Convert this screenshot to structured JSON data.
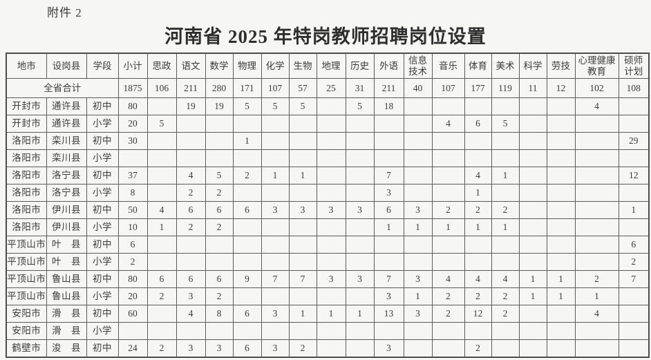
{
  "page": {
    "attachment_label": "附件 2",
    "title": "河南省 2025 年特岗教师招聘岗位设置"
  },
  "table": {
    "columns": [
      "地市",
      "设岗县",
      "学段",
      "小计",
      "思政",
      "语文",
      "数学",
      "物理",
      "化学",
      "生物",
      "地理",
      "历史",
      "外语",
      "信息\n技术",
      "音乐",
      "体育",
      "美术",
      "科学",
      "劳技",
      "心理健康\n教育",
      "硕师\n计划"
    ],
    "total_row": {
      "label": "全省合计",
      "values": [
        "1875",
        "106",
        "211",
        "280",
        "171",
        "107",
        "57",
        "25",
        "31",
        "211",
        "40",
        "107",
        "177",
        "119",
        "11",
        "12",
        "102",
        "108"
      ]
    },
    "rows": [
      {
        "city": "开封市",
        "county": "通许县",
        "stage": "初中",
        "values": [
          "80",
          "",
          "19",
          "19",
          "5",
          "5",
          "5",
          "",
          "5",
          "18",
          "",
          "",
          "",
          "",
          "",
          "",
          "4",
          ""
        ]
      },
      {
        "city": "开封市",
        "county": "通许县",
        "stage": "小学",
        "values": [
          "20",
          "5",
          "",
          "",
          "",
          "",
          "",
          "",
          "",
          "",
          "",
          "4",
          "6",
          "5",
          "",
          "",
          "",
          ""
        ]
      },
      {
        "city": "洛阳市",
        "county": "栾川县",
        "stage": "初中",
        "values": [
          "30",
          "",
          "",
          "",
          "1",
          "",
          "",
          "",
          "",
          "",
          "",
          "",
          "",
          "",
          "",
          "",
          "",
          "29"
        ]
      },
      {
        "city": "洛阳市",
        "county": "栾川县",
        "stage": "小学",
        "values": [
          "",
          "",
          "",
          "",
          "",
          "",
          "",
          "",
          "",
          "",
          "",
          "",
          "",
          "",
          "",
          "",
          "",
          ""
        ]
      },
      {
        "city": "洛阳市",
        "county": "洛宁县",
        "stage": "初中",
        "values": [
          "37",
          "",
          "4",
          "5",
          "2",
          "1",
          "1",
          "",
          "",
          "7",
          "",
          "",
          "4",
          "1",
          "",
          "",
          "",
          "12"
        ]
      },
      {
        "city": "洛阳市",
        "county": "洛宁县",
        "stage": "小学",
        "values": [
          "8",
          "",
          "2",
          "2",
          "",
          "",
          "",
          "",
          "",
          "3",
          "",
          "",
          "1",
          "",
          "",
          "",
          "",
          ""
        ]
      },
      {
        "city": "洛阳市",
        "county": "伊川县",
        "stage": "初中",
        "values": [
          "50",
          "4",
          "6",
          "6",
          "6",
          "3",
          "3",
          "3",
          "3",
          "6",
          "3",
          "2",
          "2",
          "2",
          "",
          "",
          "",
          "1"
        ]
      },
      {
        "city": "洛阳市",
        "county": "伊川县",
        "stage": "小学",
        "values": [
          "10",
          "1",
          "2",
          "2",
          "",
          "",
          "",
          "",
          "",
          "1",
          "1",
          "1",
          "1",
          "1",
          "",
          "",
          "",
          ""
        ]
      },
      {
        "city": "平顶山市",
        "county": "叶　县",
        "stage": "初中",
        "values": [
          "6",
          "",
          "",
          "",
          "",
          "",
          "",
          "",
          "",
          "",
          "",
          "",
          "",
          "",
          "",
          "",
          "",
          "6"
        ]
      },
      {
        "city": "平顶山市",
        "county": "叶　县",
        "stage": "小学",
        "values": [
          "2",
          "",
          "",
          "",
          "",
          "",
          "",
          "",
          "",
          "",
          "",
          "",
          "",
          "",
          "",
          "",
          "",
          "2"
        ]
      },
      {
        "city": "平顶山市",
        "county": "鲁山县",
        "stage": "初中",
        "values": [
          "80",
          "6",
          "6",
          "6",
          "9",
          "7",
          "7",
          "3",
          "3",
          "7",
          "3",
          "4",
          "4",
          "4",
          "1",
          "1",
          "2",
          "7"
        ]
      },
      {
        "city": "平顶山市",
        "county": "鲁山县",
        "stage": "小学",
        "values": [
          "20",
          "2",
          "3",
          "2",
          "",
          "",
          "",
          "",
          "",
          "3",
          "1",
          "2",
          "2",
          "2",
          "1",
          "1",
          "1",
          ""
        ]
      },
      {
        "city": "安阳市",
        "county": "滑　县",
        "stage": "初中",
        "values": [
          "60",
          "",
          "4",
          "8",
          "6",
          "3",
          "1",
          "1",
          "1",
          "13",
          "3",
          "2",
          "12",
          "2",
          "",
          "",
          "4",
          ""
        ]
      },
      {
        "city": "安阳市",
        "county": "滑　县",
        "stage": "小学",
        "values": [
          "",
          "",
          "",
          "",
          "",
          "",
          "",
          "",
          "",
          "",
          "",
          "",
          "",
          "",
          "",
          "",
          "",
          ""
        ]
      },
      {
        "city": "鹤壁市",
        "county": "浚　县",
        "stage": "初中",
        "values": [
          "24",
          "2",
          "3",
          "3",
          "6",
          "3",
          "2",
          "",
          "",
          "3",
          "",
          "",
          "2",
          "",
          "",
          "",
          "",
          ""
        ]
      }
    ]
  }
}
